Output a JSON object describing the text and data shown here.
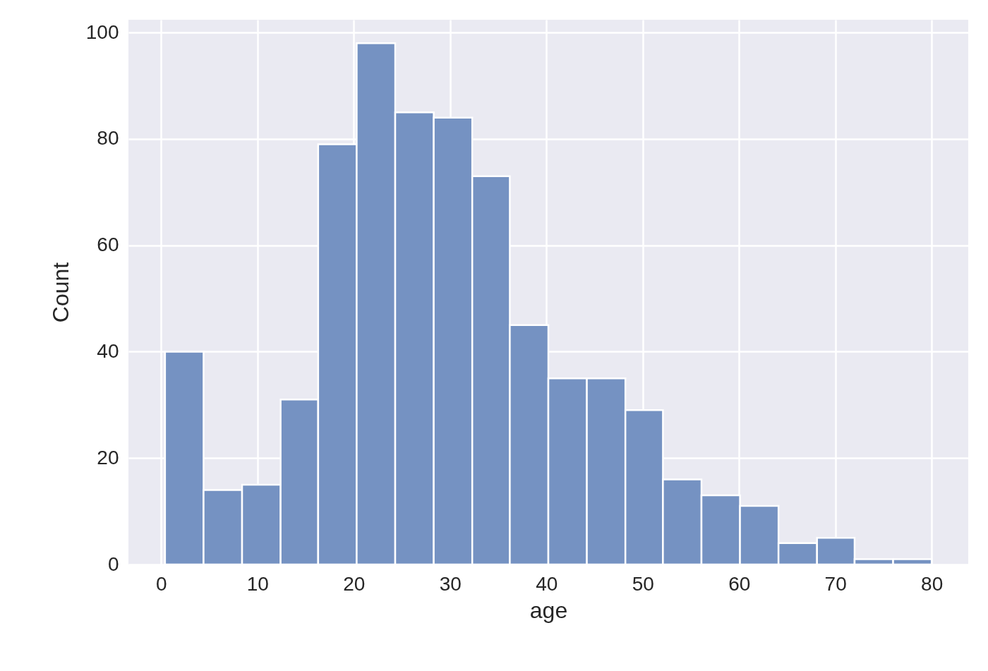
{
  "chart_data": {
    "type": "histogram",
    "xlabel": "age",
    "ylabel": "Count",
    "bins": [
      0.4,
      4.4,
      8.4,
      12.4,
      16.3,
      20.3,
      24.3,
      28.3,
      32.3,
      36.2,
      40.2,
      44.2,
      48.2,
      52.1,
      56.1,
      60.1,
      64.1,
      68.1,
      72.0,
      76.0,
      80.0
    ],
    "values": [
      40,
      14,
      15,
      31,
      79,
      98,
      85,
      84,
      73,
      45,
      35,
      35,
      29,
      16,
      13,
      11,
      4,
      5,
      1,
      1
    ],
    "color": "#7592c2",
    "xlim": [
      -3.4,
      83.8
    ],
    "xticks": [
      0,
      10,
      20,
      30,
      40,
      50,
      60,
      70,
      80
    ],
    "ylim": [
      0,
      102.4
    ],
    "yticks": [
      0,
      20,
      40,
      60,
      80,
      100
    ],
    "grid": true
  }
}
